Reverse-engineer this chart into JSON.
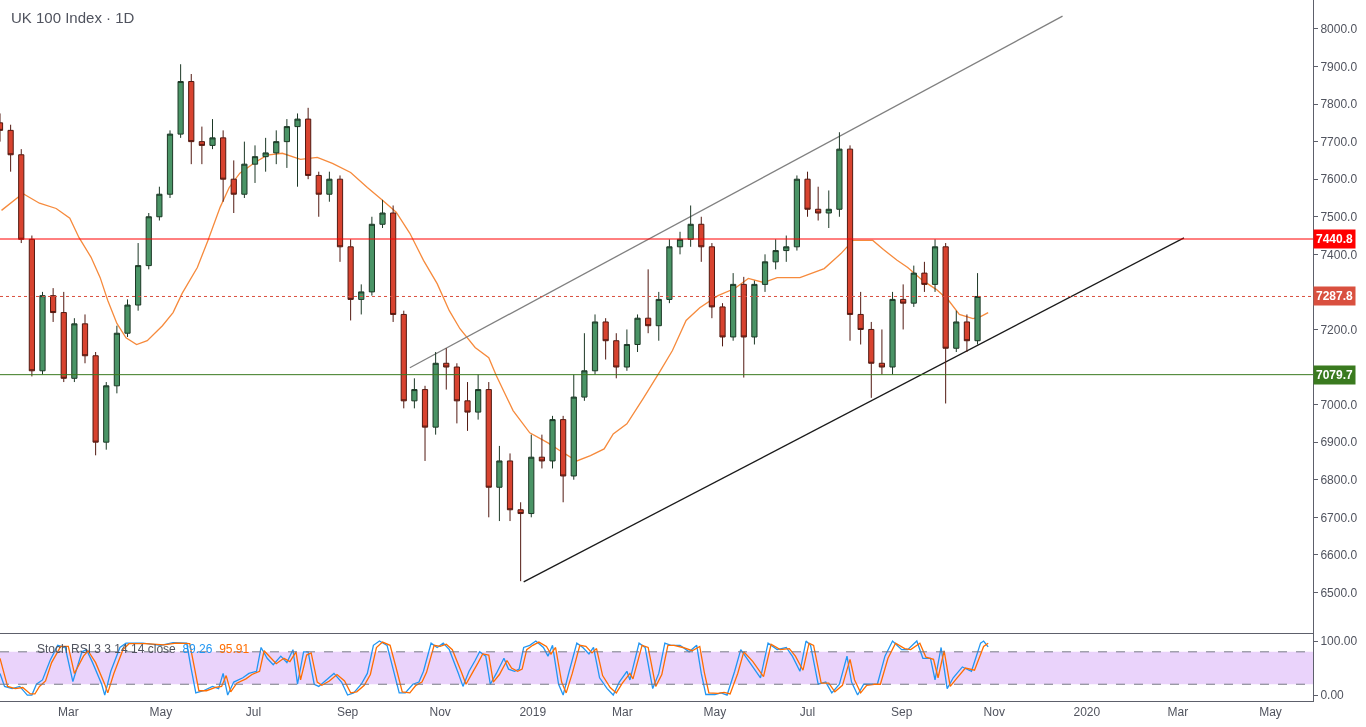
{
  "chart_data": [
    {
      "type": "candlestick",
      "title": "UK 100 Index · 1D",
      "tick_labels": "y",
      "xlim": [
        "2018-01-15",
        "2020-05-29"
      ],
      "ylim": [
        6392,
        8077
      ],
      "yticks": [
        {
          "value": 6500,
          "label": "6500.0"
        },
        {
          "value": 6600,
          "label": "6600.0"
        },
        {
          "value": 6700,
          "label": "6700.0"
        },
        {
          "value": 6800,
          "label": "6800.0"
        },
        {
          "value": 6900,
          "label": "6900.0"
        },
        {
          "value": 7000,
          "label": "7000.0"
        },
        {
          "value": 7100,
          "label": null
        },
        {
          "value": 7200,
          "label": "7200.0"
        },
        {
          "value": 7300,
          "label": null
        },
        {
          "value": 7400,
          "label": "7400.0"
        },
        {
          "value": 7500,
          "label": "7500.0"
        },
        {
          "value": 7600,
          "label": "7600.0"
        },
        {
          "value": 7700,
          "label": "7700.0"
        },
        {
          "value": 7800,
          "label": "7800.0"
        },
        {
          "value": 7900,
          "label": "7900.0"
        },
        {
          "value": 8000,
          "label": "8000.0"
        }
      ],
      "x": [
        "2018-01-15",
        "2018-01-22",
        "2018-01-29",
        "2018-02-05",
        "2018-02-12",
        "2018-02-19",
        "2018-02-26",
        "2018-03-05",
        "2018-03-12",
        "2018-03-19",
        "2018-03-26",
        "2018-04-02",
        "2018-04-09",
        "2018-04-16",
        "2018-04-23",
        "2018-04-30",
        "2018-05-07",
        "2018-05-14",
        "2018-05-21",
        "2018-05-28",
        "2018-06-04",
        "2018-06-11",
        "2018-06-18",
        "2018-06-25",
        "2018-07-02",
        "2018-07-09",
        "2018-07-16",
        "2018-07-23",
        "2018-07-30",
        "2018-08-06",
        "2018-08-13",
        "2018-08-20",
        "2018-08-27",
        "2018-09-03",
        "2018-09-10",
        "2018-09-17",
        "2018-09-24",
        "2018-10-01",
        "2018-10-08",
        "2018-10-15",
        "2018-10-22",
        "2018-10-29",
        "2018-11-05",
        "2018-11-12",
        "2018-11-19",
        "2018-11-26",
        "2018-12-03",
        "2018-12-10",
        "2018-12-17",
        "2018-12-24",
        "2018-12-31",
        "2019-01-07",
        "2019-01-14",
        "2019-01-21",
        "2019-01-28",
        "2019-02-04",
        "2019-02-11",
        "2019-02-18",
        "2019-02-25",
        "2019-03-04",
        "2019-03-11",
        "2019-03-18",
        "2019-03-25",
        "2019-04-01",
        "2019-04-08",
        "2019-04-15",
        "2019-04-22",
        "2019-04-29",
        "2019-05-06",
        "2019-05-13",
        "2019-05-20",
        "2019-05-27",
        "2019-06-03",
        "2019-06-10",
        "2019-06-17",
        "2019-06-24",
        "2019-07-01",
        "2019-07-08",
        "2019-07-15",
        "2019-07-22",
        "2019-07-29",
        "2019-08-05",
        "2019-08-12",
        "2019-08-19",
        "2019-08-26",
        "2019-09-02",
        "2019-09-09",
        "2019-09-16",
        "2019-09-23",
        "2019-09-30",
        "2019-10-07",
        "2019-10-14",
        "2019-10-21"
      ],
      "ohlc": [
        [
          7750,
          7775,
          7700,
          7730
        ],
        [
          7730,
          7745,
          7620,
          7665
        ],
        [
          7665,
          7680,
          7430,
          7440
        ],
        [
          7440,
          7450,
          7075,
          7090
        ],
        [
          7090,
          7300,
          7080,
          7290
        ],
        [
          7290,
          7310,
          7220,
          7245
        ],
        [
          7245,
          7300,
          7060,
          7070
        ],
        [
          7070,
          7230,
          7060,
          7215
        ],
        [
          7215,
          7240,
          7110,
          7130
        ],
        [
          7130,
          7140,
          6865,
          6900
        ],
        [
          6900,
          7060,
          6880,
          7050
        ],
        [
          7050,
          7210,
          7030,
          7190
        ],
        [
          7190,
          7280,
          7180,
          7265
        ],
        [
          7265,
          7430,
          7250,
          7370
        ],
        [
          7370,
          7510,
          7360,
          7500
        ],
        [
          7500,
          7580,
          7490,
          7560
        ],
        [
          7560,
          7730,
          7550,
          7720
        ],
        [
          7720,
          7906,
          7710,
          7860
        ],
        [
          7860,
          7880,
          7640,
          7700
        ],
        [
          7700,
          7740,
          7640,
          7690
        ],
        [
          7690,
          7760,
          7680,
          7710
        ],
        [
          7710,
          7730,
          7540,
          7600
        ],
        [
          7600,
          7650,
          7510,
          7560
        ],
        [
          7560,
          7700,
          7550,
          7640
        ],
        [
          7640,
          7690,
          7590,
          7660
        ],
        [
          7660,
          7710,
          7620,
          7670
        ],
        [
          7670,
          7730,
          7640,
          7700
        ],
        [
          7700,
          7760,
          7630,
          7740
        ],
        [
          7740,
          7775,
          7580,
          7760
        ],
        [
          7760,
          7790,
          7600,
          7610
        ],
        [
          7610,
          7620,
          7500,
          7560
        ],
        [
          7560,
          7620,
          7540,
          7600
        ],
        [
          7600,
          7610,
          7380,
          7420
        ],
        [
          7420,
          7440,
          7224,
          7280
        ],
        [
          7280,
          7320,
          7240,
          7300
        ],
        [
          7300,
          7500,
          7290,
          7480
        ],
        [
          7480,
          7545,
          7470,
          7510
        ],
        [
          7510,
          7530,
          7220,
          7240
        ],
        [
          7240,
          7250,
          6990,
          7010
        ],
        [
          7010,
          7070,
          6990,
          7040
        ],
        [
          7040,
          7050,
          6850,
          6940
        ],
        [
          6940,
          7140,
          6920,
          7110
        ],
        [
          7110,
          7150,
          7040,
          7100
        ],
        [
          7100,
          7110,
          6950,
          7010
        ],
        [
          7010,
          7060,
          6930,
          6980
        ],
        [
          6980,
          7080,
          6960,
          7040
        ],
        [
          7040,
          7060,
          6700,
          6780
        ],
        [
          6780,
          6890,
          6690,
          6850
        ],
        [
          6850,
          6870,
          6690,
          6720
        ],
        [
          6720,
          6740,
          6530,
          6710
        ],
        [
          6710,
          6920,
          6700,
          6860
        ],
        [
          6860,
          6920,
          6830,
          6850
        ],
        [
          6850,
          6970,
          6830,
          6960
        ],
        [
          6960,
          6970,
          6740,
          6810
        ],
        [
          6810,
          7080,
          6800,
          7020
        ],
        [
          7020,
          7190,
          7010,
          7090
        ],
        [
          7090,
          7240,
          7080,
          7220
        ],
        [
          7220,
          7230,
          7120,
          7170
        ],
        [
          7170,
          7190,
          7070,
          7100
        ],
        [
          7100,
          7200,
          7090,
          7160
        ],
        [
          7160,
          7240,
          7140,
          7230
        ],
        [
          7230,
          7360,
          7190,
          7210
        ],
        [
          7210,
          7300,
          7170,
          7280
        ],
        [
          7280,
          7440,
          7270,
          7420
        ],
        [
          7420,
          7460,
          7400,
          7440
        ],
        [
          7440,
          7530,
          7420,
          7480
        ],
        [
          7480,
          7500,
          7380,
          7420
        ],
        [
          7420,
          7430,
          7230,
          7260
        ],
        [
          7260,
          7270,
          7155,
          7180
        ],
        [
          7180,
          7350,
          7170,
          7320
        ],
        [
          7320,
          7340,
          7072,
          7180
        ],
        [
          7180,
          7330,
          7160,
          7320
        ],
        [
          7320,
          7400,
          7300,
          7380
        ],
        [
          7380,
          7440,
          7360,
          7410
        ],
        [
          7410,
          7450,
          7380,
          7420
        ],
        [
          7420,
          7610,
          7410,
          7600
        ],
        [
          7600,
          7620,
          7500,
          7520
        ],
        [
          7520,
          7580,
          7490,
          7510
        ],
        [
          7510,
          7570,
          7470,
          7520
        ],
        [
          7520,
          7725,
          7500,
          7680
        ],
        [
          7680,
          7690,
          7170,
          7240
        ],
        [
          7240,
          7300,
          7160,
          7200
        ],
        [
          7200,
          7220,
          7018,
          7110
        ],
        [
          7110,
          7200,
          7080,
          7100
        ],
        [
          7100,
          7300,
          7080,
          7280
        ],
        [
          7280,
          7320,
          7200,
          7270
        ],
        [
          7270,
          7370,
          7260,
          7350
        ],
        [
          7350,
          7380,
          7300,
          7320
        ],
        [
          7320,
          7440,
          7300,
          7420
        ],
        [
          7420,
          7430,
          7003,
          7150
        ],
        [
          7150,
          7250,
          7140,
          7220
        ],
        [
          7220,
          7240,
          7140,
          7170
        ],
        [
          7170,
          7350,
          7160,
          7287.8
        ]
      ],
      "colors": [
        "#d8432f",
        "#d8432f",
        "#d8432f",
        "#d8432f",
        "#4a9466",
        "#d8432f",
        "#d8432f",
        "#4a9466",
        "#d8432f",
        "#d8432f",
        "#4a9466",
        "#4a9466",
        "#4a9466",
        "#4a9466",
        "#4a9466",
        "#4a9466",
        "#4a9466",
        "#4a9466",
        "#d8432f",
        "#d8432f",
        "#4a9466",
        "#d8432f",
        "#d8432f",
        "#4a9466",
        "#4a9466",
        "#4a9466",
        "#4a9466",
        "#4a9466",
        "#4a9466",
        "#d8432f",
        "#d8432f",
        "#4a9466",
        "#d8432f",
        "#d8432f",
        "#4a9466",
        "#4a9466",
        "#4a9466",
        "#d8432f",
        "#d8432f",
        "#4a9466",
        "#d8432f",
        "#4a9466",
        "#d8432f",
        "#d8432f",
        "#d8432f",
        "#4a9466",
        "#d8432f",
        "#4a9466",
        "#d8432f",
        "#d8432f",
        "#4a9466",
        "#d8432f",
        "#4a9466",
        "#d8432f",
        "#4a9466",
        "#4a9466",
        "#4a9466",
        "#d8432f",
        "#d8432f",
        "#4a9466",
        "#4a9466",
        "#d8432f",
        "#4a9466",
        "#4a9466",
        "#4a9466",
        "#4a9466",
        "#d8432f",
        "#d8432f",
        "#d8432f",
        "#4a9466",
        "#d8432f",
        "#4a9466",
        "#4a9466",
        "#4a9466",
        "#4a9466",
        "#4a9466",
        "#d8432f",
        "#d8432f",
        "#4a9466",
        "#4a9466",
        "#d8432f",
        "#d8432f",
        "#d8432f",
        "#d8432f",
        "#4a9466",
        "#d8432f",
        "#4a9466",
        "#d8432f",
        "#4a9466",
        "#d8432f",
        "#4a9466",
        "#d8432f",
        "#4a9466"
      ],
      "series": [
        {
          "type": "line",
          "color": "#f68a3c",
          "x": [
            "2018-01-16",
            "2018-01-30",
            "2018-02-10",
            "2018-02-21",
            "2018-03-02",
            "2018-03-08",
            "2018-03-16",
            "2018-03-22",
            "2018-03-27",
            "2018-04-02",
            "2018-04-08",
            "2018-04-15",
            "2018-04-22",
            "2018-05-02",
            "2018-05-09",
            "2018-05-15",
            "2018-05-25",
            "2018-06-01",
            "2018-06-09",
            "2018-06-15",
            "2018-06-22",
            "2018-07-01",
            "2018-07-10",
            "2018-07-20",
            "2018-08-01",
            "2018-08-12",
            "2018-08-22",
            "2018-09-03",
            "2018-09-14",
            "2018-09-24",
            "2018-10-03",
            "2018-10-12",
            "2018-10-21",
            "2018-10-30",
            "2018-11-07",
            "2018-11-14",
            "2018-11-24",
            "2018-12-03",
            "2018-12-08",
            "2018-12-19",
            "2018-12-30",
            "2019-01-11",
            "2019-01-21",
            "2019-01-30",
            "2019-02-08",
            "2019-02-17",
            "2019-02-23",
            "2019-03-04",
            "2019-03-15",
            "2019-03-26",
            "2019-04-03",
            "2019-04-12",
            "2019-04-21",
            "2019-05-03",
            "2019-05-14",
            "2019-05-23",
            "2019-06-02",
            "2019-06-11",
            "2019-06-26",
            "2019-07-12",
            "2019-07-23",
            "2019-07-31",
            "2019-08-05",
            "2019-08-13",
            "2019-08-20",
            "2019-08-29",
            "2019-09-05",
            "2019-09-15",
            "2019-09-24",
            "2019-10-02",
            "2019-10-09",
            "2019-10-18",
            "2019-10-23",
            "2019-10-28"
          ],
          "values": [
            7517,
            7562,
            7536,
            7522,
            7496,
            7445,
            7392,
            7338,
            7277,
            7216,
            7178,
            7160,
            7170,
            7210,
            7245,
            7296,
            7365,
            7437,
            7525,
            7578,
            7616,
            7642,
            7664,
            7669,
            7653,
            7658,
            7642,
            7618,
            7578,
            7544,
            7512,
            7456,
            7384,
            7322,
            7250,
            7202,
            7152,
            7125,
            7077,
            6984,
            6925,
            6898,
            6872,
            6850,
            6864,
            6882,
            6922,
            6949,
            7018,
            7090,
            7144,
            7224,
            7258,
            7290,
            7309,
            7336,
            7325,
            7338,
            7338,
            7362,
            7402,
            7437,
            7437,
            7437,
            7413,
            7384,
            7365,
            7330,
            7306,
            7277,
            7240,
            7229,
            7234,
            7245
          ]
        },
        {
          "type": "line",
          "color": "#808080",
          "x": [
            "2018-10-12",
            "2019-12-16"
          ],
          "values": [
            7098,
            8034
          ]
        },
        {
          "type": "line",
          "color": "#1a1a1a",
          "x": [
            "2018-12-26",
            "2020-03-05"
          ],
          "values": [
            6528,
            7444
          ]
        }
      ],
      "ref_lines": [
        {
          "axis": "y",
          "value": 7440.8,
          "label": "7440.8",
          "color": "#ff0000",
          "line_style": "solid"
        },
        {
          "axis": "y",
          "value": 7287.8,
          "label": "7287.8",
          "color": "#d9503f",
          "line_style": "dotted"
        },
        {
          "axis": "y",
          "value": 7079.7,
          "label": "7079.7",
          "color": "#3a7a1f",
          "line_style": "solid"
        }
      ]
    },
    {
      "type": "line",
      "title": "Stoch RSI 3 3 14 14 close",
      "legend": "top left",
      "xlim": [
        "2018-01-15",
        "2020-05-29"
      ],
      "ylim": [
        -11,
        113
      ],
      "xticks": [
        {
          "value": "2018-03-01",
          "label": "Mar"
        },
        {
          "value": "2018-05-01",
          "label": "May"
        },
        {
          "value": "2018-07-01",
          "label": "Jul"
        },
        {
          "value": "2018-09-01",
          "label": "Sep"
        },
        {
          "value": "2018-11-01",
          "label": "Nov"
        },
        {
          "value": "2019-01-01",
          "label": "2019"
        },
        {
          "value": "2019-03-01",
          "label": "Mar"
        },
        {
          "value": "2019-05-01",
          "label": "May"
        },
        {
          "value": "2019-07-01",
          "label": "Jul"
        },
        {
          "value": "2019-09-01",
          "label": "Sep"
        },
        {
          "value": "2019-11-01",
          "label": "Nov"
        },
        {
          "value": "2020-01-01",
          "label": "2020"
        },
        {
          "value": "2020-03-01",
          "label": "Mar"
        },
        {
          "value": "2020-05-01",
          "label": "May"
        }
      ],
      "yticks": [
        {
          "value": 0,
          "label": "0.00"
        },
        {
          "value": 100,
          "label": "100.00"
        }
      ],
      "bands": [
        {
          "axis": "y",
          "from": 20,
          "to": 80,
          "color": "#ead3fb"
        }
      ],
      "ref_lines": [
        {
          "axis": "y",
          "value": 80,
          "color": "#787b86",
          "line_style": "dashed"
        },
        {
          "axis": "y",
          "value": 20,
          "color": "#787b86",
          "line_style": "dashed"
        }
      ],
      "series": [
        {
          "name": "89.26",
          "color": "#2196f3",
          "x": [
            "2018-01-15",
            "2018-01-18",
            "2018-01-23",
            "2018-01-28",
            "2018-02-02",
            "2018-02-05",
            "2018-02-08",
            "2018-02-12",
            "2018-02-17",
            "2018-02-22",
            "2018-02-27",
            "2018-03-04",
            "2018-03-10",
            "2018-03-13",
            "2018-03-17",
            "2018-03-23",
            "2018-03-25",
            "2018-03-29",
            "2018-04-04",
            "2018-04-08",
            "2018-04-19",
            "2018-05-01",
            "2018-05-09",
            "2018-05-18",
            "2018-05-21",
            "2018-05-24",
            "2018-05-29",
            "2018-06-04",
            "2018-06-08",
            "2018-06-11",
            "2018-06-14",
            "2018-06-18",
            "2018-06-24",
            "2018-06-28",
            "2018-07-03",
            "2018-07-06",
            "2018-07-10",
            "2018-07-14",
            "2018-07-19",
            "2018-07-23",
            "2018-07-27",
            "2018-07-30",
            "2018-08-03",
            "2018-08-06",
            "2018-08-10",
            "2018-08-13",
            "2018-08-18",
            "2018-08-23",
            "2018-08-28",
            "2018-09-01",
            "2018-09-05",
            "2018-09-10",
            "2018-09-14",
            "2018-09-18",
            "2018-09-22",
            "2018-09-27",
            "2018-10-01",
            "2018-10-05",
            "2018-10-09",
            "2018-10-14",
            "2018-10-18",
            "2018-10-21",
            "2018-10-26",
            "2018-10-30",
            "2018-11-03",
            "2018-11-07",
            "2018-11-13",
            "2018-11-16",
            "2018-11-20",
            "2018-11-24",
            "2018-11-27",
            "2018-12-01",
            "2018-12-04",
            "2018-12-08",
            "2018-12-13",
            "2018-12-16",
            "2018-12-20",
            "2018-12-23",
            "2018-12-26",
            "2018-12-30",
            "2019-01-03",
            "2019-01-08",
            "2019-01-11",
            "2019-01-14",
            "2019-01-18",
            "2019-01-21",
            "2019-01-25",
            "2019-01-30",
            "2019-02-03",
            "2019-02-07",
            "2019-02-10",
            "2019-02-14",
            "2019-02-19",
            "2019-02-23",
            "2019-02-27",
            "2019-03-04",
            "2019-03-06",
            "2019-03-12",
            "2019-03-16",
            "2019-03-21",
            "2019-03-25",
            "2019-03-29",
            "2019-04-02",
            "2019-04-08",
            "2019-04-14",
            "2019-04-19",
            "2019-04-22",
            "2019-04-25",
            "2019-05-01",
            "2019-05-05",
            "2019-05-09",
            "2019-05-14",
            "2019-05-18",
            "2019-05-24",
            "2019-05-31",
            "2019-06-05",
            "2019-06-11",
            "2019-06-17",
            "2019-06-21",
            "2019-06-26",
            "2019-06-30",
            "2019-07-03",
            "2019-07-08",
            "2019-07-13",
            "2019-07-17",
            "2019-07-22",
            "2019-07-27",
            "2019-07-30",
            "2019-08-03",
            "2019-08-07",
            "2019-08-12",
            "2019-08-16",
            "2019-08-21",
            "2019-08-26",
            "2019-09-01",
            "2019-09-05",
            "2019-09-11",
            "2019-09-15",
            "2019-09-20",
            "2019-09-23",
            "2019-09-27",
            "2019-10-01",
            "2019-10-05",
            "2019-10-11",
            "2019-10-17",
            "2019-10-23",
            "2019-10-25",
            "2019-10-28"
          ],
          "values": [
            40,
            16,
            12,
            16,
            0,
            0,
            20,
            28,
            64,
            92,
            88,
            25,
            80,
            84,
            60,
            20,
            0,
            44,
            88,
            96,
            96,
            92,
            97,
            96,
            48,
            4,
            8,
            16,
            12,
            40,
            0,
            24,
            32,
            40,
            44,
            88,
            68,
            56,
            72,
            60,
            84,
            20,
            80,
            80,
            20,
            16,
            28,
            40,
            24,
            0,
            4,
            20,
            40,
            92,
            100,
            92,
            48,
            4,
            4,
            20,
            24,
            44,
            96,
            88,
            96,
            84,
            40,
            16,
            44,
            64,
            80,
            72,
            20,
            40,
            68,
            48,
            44,
            48,
            88,
            92,
            100,
            88,
            72,
            92,
            20,
            0,
            44,
            96,
            88,
            76,
            88,
            32,
            12,
            0,
            24,
            44,
            28,
            96,
            88,
            12,
            40,
            96,
            92,
            92,
            80,
            92,
            40,
            1,
            1,
            4,
            0,
            44,
            84,
            60,
            32,
            96,
            84,
            88,
            72,
            44,
            100,
            92,
            20,
            24,
            4,
            20,
            72,
            24,
            0,
            20,
            20,
            20,
            72,
            100,
            84,
            84,
            100,
            68,
            68,
            28,
            88,
            12,
            32,
            52,
            44,
            96,
            100,
            89.26
          ]
        },
        {
          "name": "95.91",
          "color": "#ff6d00",
          "x": [
            "2018-01-15",
            "2018-01-20",
            "2018-01-25",
            "2018-01-30",
            "2018-02-04",
            "2018-02-07",
            "2018-02-10",
            "2018-02-14",
            "2018-02-18",
            "2018-02-24",
            "2018-03-01",
            "2018-03-05",
            "2018-03-11",
            "2018-03-14",
            "2018-03-19",
            "2018-03-25",
            "2018-03-27",
            "2018-03-31",
            "2018-04-06",
            "2018-04-10",
            "2018-04-21",
            "2018-05-03",
            "2018-05-11",
            "2018-05-20",
            "2018-05-23",
            "2018-05-26",
            "2018-05-31",
            "2018-06-06",
            "2018-06-10",
            "2018-06-13",
            "2018-06-16",
            "2018-06-20",
            "2018-06-26",
            "2018-06-30",
            "2018-07-05",
            "2018-07-08",
            "2018-07-12",
            "2018-07-16",
            "2018-07-21",
            "2018-07-25",
            "2018-07-29",
            "2018-08-01",
            "2018-08-05",
            "2018-08-08",
            "2018-08-12",
            "2018-08-15",
            "2018-08-20",
            "2018-08-25",
            "2018-08-30",
            "2018-09-03",
            "2018-09-07",
            "2018-09-12",
            "2018-09-16",
            "2018-09-20",
            "2018-09-24",
            "2018-09-29",
            "2018-10-03",
            "2018-10-07",
            "2018-10-12",
            "2018-10-16",
            "2018-10-20",
            "2018-10-23",
            "2018-10-28",
            "2018-11-01",
            "2018-11-05",
            "2018-11-09",
            "2018-11-15",
            "2018-11-18",
            "2018-11-22",
            "2018-11-26",
            "2018-11-29",
            "2018-12-03",
            "2018-12-06",
            "2018-12-10",
            "2018-12-15",
            "2018-12-18",
            "2018-12-22",
            "2018-12-25",
            "2018-12-28",
            "2019-01-01",
            "2019-01-05",
            "2019-01-10",
            "2019-01-13",
            "2019-01-16",
            "2019-01-20",
            "2019-01-23",
            "2019-01-27",
            "2019-02-01",
            "2019-02-05",
            "2019-02-09",
            "2019-02-12",
            "2019-02-16",
            "2019-02-21",
            "2019-02-25",
            "2019-03-01",
            "2019-03-06",
            "2019-03-08",
            "2019-03-14",
            "2019-03-18",
            "2019-03-23",
            "2019-03-27",
            "2019-03-31",
            "2019-04-04",
            "2019-04-10",
            "2019-04-16",
            "2019-04-21",
            "2019-04-24",
            "2019-04-27",
            "2019-05-03",
            "2019-05-07",
            "2019-05-11",
            "2019-05-16",
            "2019-05-20",
            "2019-05-26",
            "2019-06-02",
            "2019-06-07",
            "2019-06-13",
            "2019-06-19",
            "2019-06-23",
            "2019-06-28",
            "2019-07-02",
            "2019-07-05",
            "2019-07-10",
            "2019-07-15",
            "2019-07-19",
            "2019-07-24",
            "2019-07-29",
            "2019-08-01",
            "2019-08-05",
            "2019-08-09",
            "2019-08-14",
            "2019-08-18",
            "2019-08-23",
            "2019-08-28",
            "2019-09-03",
            "2019-09-07",
            "2019-09-13",
            "2019-09-17",
            "2019-09-22",
            "2019-09-25",
            "2019-09-29",
            "2019-10-03",
            "2019-10-07",
            "2019-10-13",
            "2019-10-19",
            "2019-10-25",
            "2019-10-28"
          ],
          "values": [
            68,
            16,
            12,
            14,
            2,
            2,
            16,
            26,
            60,
            90,
            90,
            40,
            72,
            82,
            60,
            20,
            4,
            40,
            84,
            95,
            95,
            93,
            96,
            95,
            52,
            8,
            8,
            14,
            16,
            36,
            6,
            22,
            30,
            38,
            44,
            82,
            70,
            58,
            68,
            62,
            80,
            28,
            74,
            78,
            24,
            18,
            26,
            38,
            26,
            4,
            6,
            18,
            38,
            88,
            98,
            92,
            50,
            6,
            4,
            18,
            24,
            42,
            92,
            90,
            94,
            84,
            42,
            20,
            40,
            60,
            76,
            74,
            24,
            38,
            64,
            50,
            44,
            48,
            84,
            92,
            98,
            90,
            76,
            88,
            24,
            4,
            40,
            92,
            90,
            78,
            86,
            36,
            14,
            4,
            22,
            40,
            30,
            92,
            88,
            16,
            38,
            92,
            92,
            88,
            82,
            90,
            42,
            4,
            3,
            5,
            2,
            40,
            80,
            62,
            34,
            94,
            84,
            86,
            72,
            46,
            96,
            92,
            22,
            22,
            6,
            18,
            66,
            28,
            4,
            18,
            20,
            20,
            68,
            96,
            86,
            84,
            96,
            70,
            66,
            32,
            82,
            16,
            30,
            50,
            46,
            90,
            95.91
          ]
        }
      ]
    }
  ]
}
